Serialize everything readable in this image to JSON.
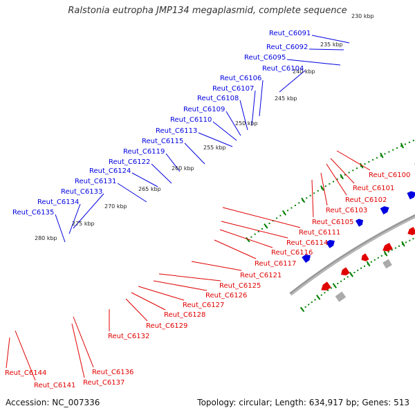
{
  "title": "Ralstonia eutropha JMP134 megaplasmid, complete sequence",
  "footer": {
    "accession": "Accession: NC_007336",
    "topology": "Topology: circular; Length: 634,917 bp; Genes: 513"
  },
  "colors": {
    "forward_gene": "#0000e0",
    "reverse_gene": "#e00000",
    "backbone": "#808080",
    "tick": "#008000",
    "rna_cyan": "#33cccc",
    "rna_gray": "#aaaaaa",
    "rna_orange": "#ff9900",
    "rna_olive": "#669933",
    "rna_steel": "#4a80b0"
  },
  "kbp_labels": [
    "230 kbp",
    "235 kbp",
    "240 kbp",
    "245 kbp",
    "250 kbp",
    "255 kbp",
    "260 kbp",
    "265 kbp",
    "270 kbp",
    "275 kbp",
    "280 kbp"
  ],
  "forward_labels": [
    "Reut_C6091",
    "Reut_C6092",
    "Reut_C6095",
    "Reut_C6104",
    "Reut_C6106",
    "Reut_C6107",
    "Reut_C6108",
    "Reut_C6109",
    "Reut_C6110",
    "Reut_C6113",
    "Reut_C6115",
    "Reut_C6119",
    "Reut_C6122",
    "Reut_C6124",
    "Reut_C6131",
    "Reut_C6133",
    "Reut_C6134",
    "Reut_C6135"
  ],
  "reverse_labels": [
    "Reut_C6100",
    "Reut_C6101",
    "Reut_C6102",
    "Reut_C6103",
    "Reut_C6105",
    "Reut_C6111",
    "Reut_C6114",
    "Reut_C6116",
    "Reut_C6117",
    "Reut_C6121",
    "Reut_C6125",
    "Reut_C6126",
    "Reut_C6127",
    "Reut_C6128",
    "Reut_C6129",
    "Reut_C6132",
    "Reut_C6136",
    "Reut_C6137",
    "Reut_C6141",
    "Reut_C6144"
  ]
}
